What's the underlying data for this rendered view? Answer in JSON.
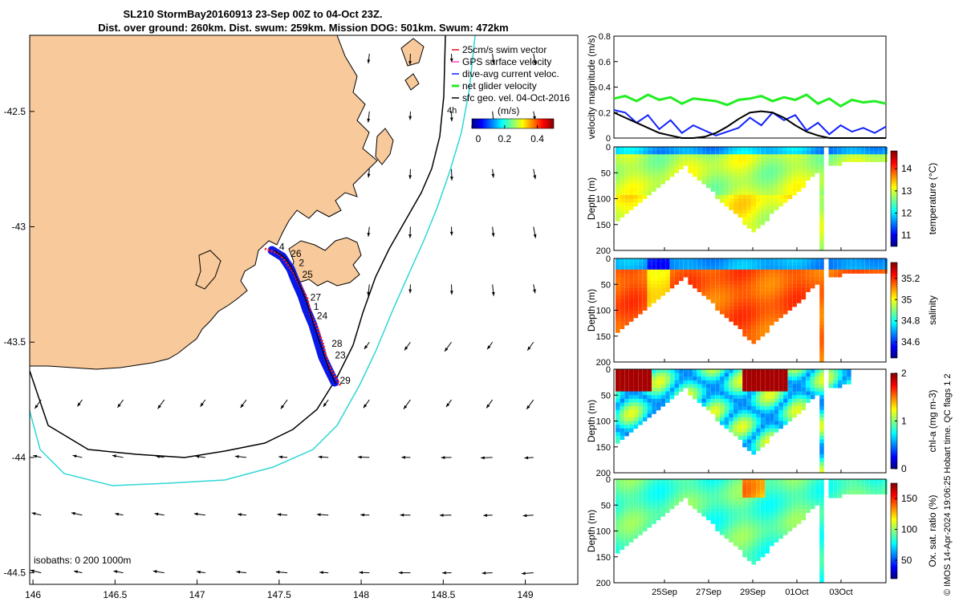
{
  "colors": {
    "land": "#f8c99a",
    "track_blue": "#0a18e6",
    "track_red": "#ff1818",
    "isobath_200": "#000000",
    "isobath_1000": "#2fd6d6",
    "swim_vector": "#e0141e",
    "gps_velocity": "#ff44cc",
    "dive_avg": "#1020ff",
    "net_glider": "#22ee22",
    "sfc_geo": "#000000"
  },
  "chart_data": [
    {
      "type": "map",
      "title_line1": "SL210 StormBay20160913 23-Sep 00Z to 04-Oct 23Z.",
      "title_line2": "Dist. over ground: 260km. Dist. swum: 259km. Mission DOG: 501km. Swum: 472km",
      "xlim": [
        145.98,
        149.32
      ],
      "ylim": [
        -44.55,
        -42.17
      ],
      "x_ticks": [
        "146",
        "146.5",
        "147",
        "147.5",
        "148",
        "148.5",
        "149"
      ],
      "y_ticks": [
        "-42.5",
        "-43",
        "-43.5",
        "-44",
        "-44.5"
      ],
      "legend": [
        {
          "label": "25cm/s swim vector",
          "color": "swim_vector"
        },
        {
          "label": "GPS surface velocity",
          "color": "gps_velocity"
        },
        {
          "label": "dive-avg current veloc.",
          "color": "dive_avg"
        },
        {
          "label": "net glider velocity",
          "color": "net_glider"
        },
        {
          "label": "sfc geo. vel. 04-Oct-2016",
          "color": "sfc_geo"
        }
      ],
      "legend_extra": "4h",
      "colorbar_title": "(m/s)",
      "colorbar_ticks": [
        "0",
        "0.2",
        "0.4"
      ],
      "isobath_note": "isobaths: 0   200  1000m",
      "day_labels": [
        {
          "label": "4",
          "lon": 147.5,
          "lat": -43.1
        },
        {
          "label": "26",
          "lon": 147.57,
          "lat": -43.13
        },
        {
          "label": "2",
          "lon": 147.62,
          "lat": -43.17
        },
        {
          "label": "25",
          "lon": 147.64,
          "lat": -43.22
        },
        {
          "label": "27",
          "lon": 147.69,
          "lat": -43.32
        },
        {
          "label": "1",
          "lon": 147.71,
          "lat": -43.36
        },
        {
          "label": "24",
          "lon": 147.73,
          "lat": -43.4
        },
        {
          "label": "28",
          "lon": 147.82,
          "lat": -43.52
        },
        {
          "label": "23",
          "lon": 147.84,
          "lat": -43.57
        },
        {
          "label": "29",
          "lon": 147.87,
          "lat": -43.68
        }
      ]
    },
    {
      "type": "line",
      "ylabel": "velocity magnitude (m/s)",
      "ylim": [
        0,
        0.8
      ],
      "y_ticks": [
        "0",
        "0.2",
        "0.4",
        "0.6",
        "0.8"
      ],
      "xlim": [
        0,
        12
      ],
      "series": [
        {
          "color": "net_glider",
          "x": [
            0,
            0.5,
            1,
            1.5,
            2,
            2.5,
            3,
            3.5,
            4,
            4.5,
            5,
            5.5,
            6,
            6.5,
            7,
            7.5,
            8,
            8.5,
            9,
            9.5,
            10,
            10.5,
            11,
            11.5,
            12
          ],
          "values": [
            0.31,
            0.33,
            0.29,
            0.34,
            0.3,
            0.32,
            0.27,
            0.31,
            0.3,
            0.29,
            0.26,
            0.3,
            0.31,
            0.33,
            0.29,
            0.32,
            0.3,
            0.34,
            0.27,
            0.31,
            0.25,
            0.3,
            0.28,
            0.29,
            0.27
          ]
        },
        {
          "color": "dive_avg",
          "x": [
            0,
            0.5,
            1,
            1.5,
            2,
            2.5,
            3,
            3.5,
            4,
            4.5,
            5,
            5.5,
            6,
            6.5,
            7,
            7.5,
            8,
            8.5,
            9,
            9.5,
            10,
            10.5,
            11,
            11.5,
            12
          ],
          "values": [
            0.22,
            0.2,
            0.12,
            0.18,
            0.07,
            0.14,
            0.04,
            0.1,
            0.06,
            0.02,
            0.05,
            0.08,
            0.16,
            0.1,
            0.2,
            0.14,
            0.18,
            0.06,
            0.12,
            0.03,
            0.1,
            0.05,
            0.08,
            0.04,
            0.09
          ]
        },
        {
          "color": "sfc_geo",
          "x": [
            0,
            0.5,
            1,
            1.5,
            2,
            2.5,
            3,
            3.5,
            4,
            4.5,
            5,
            5.5,
            6,
            6.5,
            7,
            7.5,
            8,
            8.5,
            9,
            9.5,
            10,
            10.5,
            11,
            11.5,
            12
          ],
          "values": [
            0.2,
            0.16,
            0.12,
            0.08,
            0.04,
            0.02,
            0.0,
            0.0,
            0.01,
            0.04,
            0.09,
            0.15,
            0.2,
            0.21,
            0.2,
            0.16,
            0.1,
            0.05,
            0.02,
            0.0,
            0.0,
            0.0,
            0.0,
            0.0,
            0.0
          ]
        }
      ]
    },
    {
      "type": "heatmap",
      "ylabel": "Depth (m)",
      "ylim": [
        200,
        0
      ],
      "y_ticks": [
        "0",
        "50",
        "100",
        "150",
        "200"
      ],
      "colorbar_label": "temperature (°C)",
      "colorbar_ticks": [
        "11",
        "12",
        "13",
        "14"
      ],
      "clim": [
        10.5,
        14.8
      ]
    },
    {
      "type": "heatmap",
      "ylabel": "Depth (m)",
      "ylim": [
        200,
        0
      ],
      "y_ticks": [
        "0",
        "50",
        "100",
        "150",
        "200"
      ],
      "colorbar_label": "salinity",
      "colorbar_ticks": [
        "34.6",
        "34.8",
        "35",
        "35.2"
      ],
      "clim": [
        34.45,
        35.35
      ]
    },
    {
      "type": "heatmap",
      "ylabel": "Depth (m)",
      "ylim": [
        200,
        0
      ],
      "y_ticks": [
        "0",
        "50",
        "100",
        "150",
        "200"
      ],
      "colorbar_label": "chl-a (mg m-3)",
      "colorbar_ticks": [
        "0",
        "1",
        "2"
      ],
      "clim": [
        0,
        2
      ]
    },
    {
      "type": "heatmap",
      "ylabel": "Depth (m)",
      "ylim": [
        200,
        0
      ],
      "y_ticks": [
        "0",
        "50",
        "100",
        "150",
        "200"
      ],
      "colorbar_label": "Ox. sat. ratio (%)",
      "colorbar_ticks": [
        "50",
        "100",
        "150"
      ],
      "clim": [
        20,
        175
      ],
      "x_tick_labels": [
        "25Sep",
        "27Sep",
        "29Sep",
        "01Oct",
        "03Oct"
      ]
    }
  ],
  "footer_text": "© IMOS 14-Apr-2024 19:06:25 Hobart time. QC flags 1  2"
}
